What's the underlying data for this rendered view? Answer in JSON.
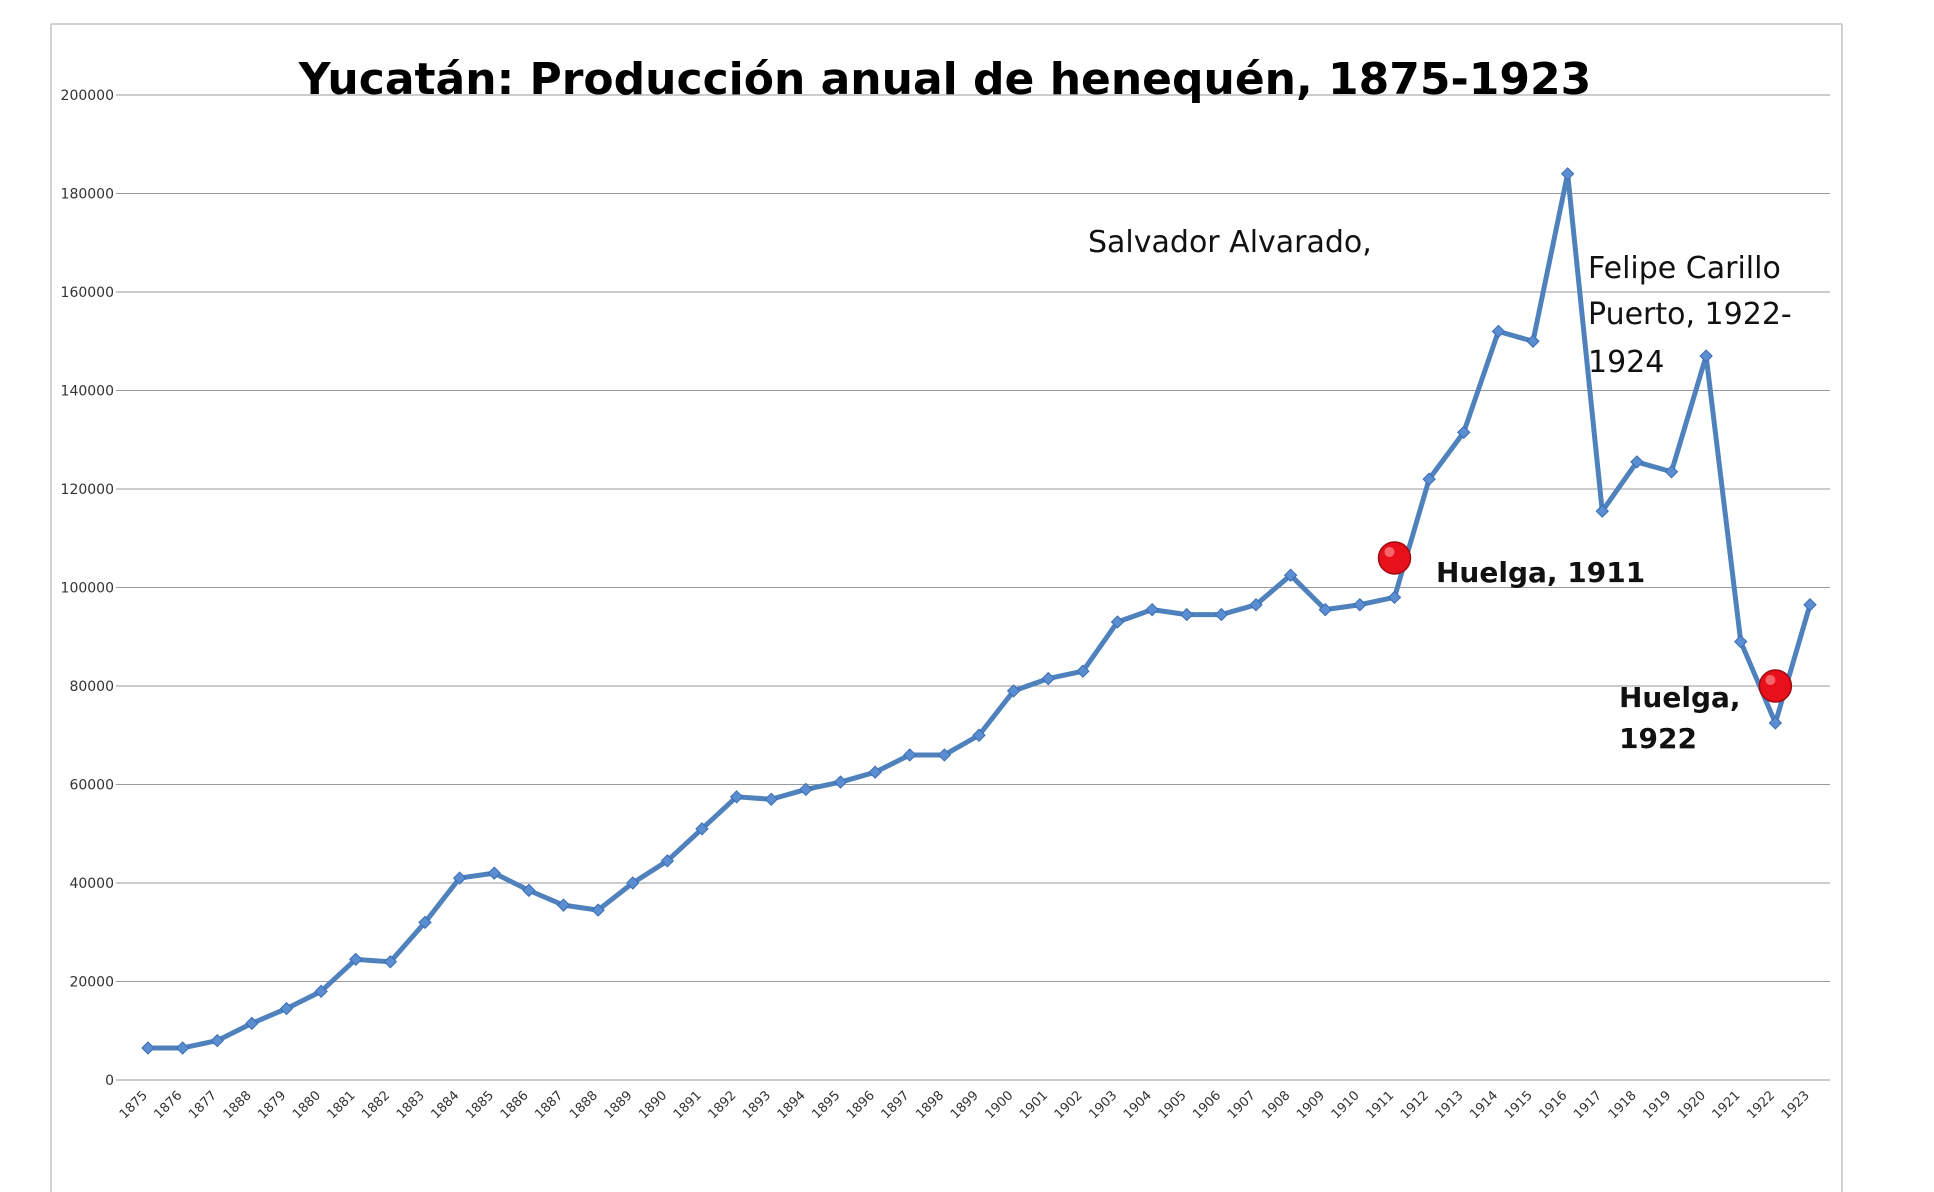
{
  "chart_data": {
    "type": "line",
    "title": "Yucatán: Producción anual de henequén, 1875-1923",
    "xlabel": "",
    "ylabel": "",
    "ylim": [
      0,
      200000
    ],
    "yticks": [
      "0",
      "20000",
      "40000",
      "60000",
      "80000",
      "100000",
      "120000",
      "140000",
      "160000",
      "180000",
      "200000"
    ],
    "grid": true,
    "legend": "none",
    "series_color": "#4f81bd",
    "marker_color": "#e8101a",
    "categories": [
      "1875",
      "1876",
      "1877",
      "1888",
      "1879",
      "1880",
      "1881",
      "1882",
      "1883",
      "1884",
      "1885",
      "1886",
      "1887",
      "1888",
      "1889",
      "1890",
      "1891",
      "1892",
      "1893",
      "1894",
      "1895",
      "1896",
      "1897",
      "1898",
      "1899",
      "1900",
      "1901",
      "1902",
      "1903",
      "1904",
      "1905",
      "1906",
      "1907",
      "1908",
      "1909",
      "1910",
      "1911",
      "1912",
      "1913",
      "1914",
      "1915",
      "1916",
      "1917",
      "1918",
      "1919",
      "1920",
      "1921",
      "1922",
      "1923"
    ],
    "series": [
      {
        "values": [
          6500,
          6500,
          8000,
          11500,
          14500,
          18000,
          24500,
          24000,
          32000,
          41000,
          42000,
          38500,
          35500,
          34500,
          40000,
          44500,
          51000,
          57500,
          57000,
          59000,
          60500,
          62500,
          66000,
          66000,
          70000,
          79000,
          81500,
          83000,
          93000,
          95500,
          94500,
          94500,
          96500,
          102500,
          95500,
          96500,
          98000,
          122000,
          131500,
          152000,
          150000,
          184000,
          115500,
          125500,
          123500,
          147000,
          89000,
          72500,
          96500
        ]
      }
    ],
    "annotations": [
      {
        "text": "Salvador Alvarado,"
      },
      {
        "lines": [
          "Felipe Carillo",
          "Puerto, 1922-",
          "1924"
        ]
      },
      {
        "text": "Huelga, 1911"
      },
      {
        "lines": [
          "Huelga,",
          "1922"
        ]
      }
    ],
    "highlight_points": [
      {
        "year": 1911,
        "value": 106000
      },
      {
        "year": 1922,
        "value": 80000
      }
    ]
  }
}
